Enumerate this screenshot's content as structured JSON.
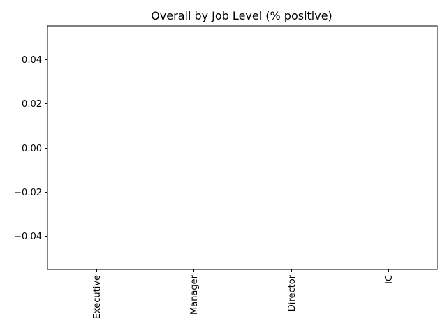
{
  "chart_data": {
    "type": "bar",
    "title": "Overall by Job Level (% positive)",
    "xlabel": "",
    "ylabel": "",
    "categories": [
      "Executive",
      "Manager",
      "Director",
      "IC"
    ],
    "series": [
      {
        "values": [
          null,
          null,
          null,
          null
        ]
      }
    ],
    "yticks": [
      -0.04,
      -0.02,
      0.0,
      0.02,
      0.04
    ],
    "ytick_labels": [
      "−0.04",
      "−0.02",
      "0.00",
      "0.02",
      "0.04"
    ],
    "ylim": [
      -0.055,
      0.055
    ],
    "grid": false,
    "legend": "none",
    "colors": {
      "axis": "#000000",
      "background": "#ffffff",
      "bar": "#1f77b4"
    }
  }
}
